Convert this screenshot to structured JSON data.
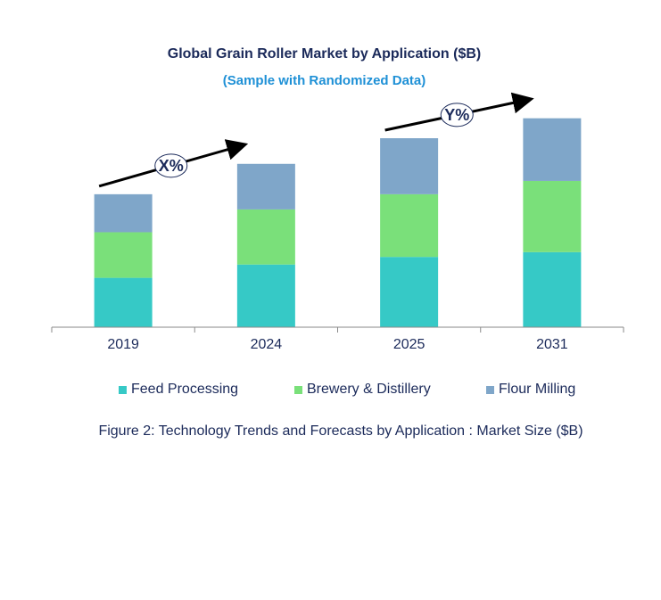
{
  "chart_data": {
    "type": "bar",
    "stacked": true,
    "title": "Global Grain Roller Market by Application ($B)",
    "subtitle": "(Sample with Randomized Data)",
    "categories": [
      "2019",
      "2024",
      "2025",
      "2031"
    ],
    "series": [
      {
        "name": "Feed Processing",
        "color": "#36c9c6",
        "values": [
          52,
          66,
          74,
          79
        ]
      },
      {
        "name": "Brewery & Distillery",
        "color": "#7ae07a",
        "values": [
          48,
          58,
          66,
          75
        ]
      },
      {
        "name": "Flour Milling",
        "color": "#7fa6c9",
        "values": [
          40,
          48,
          59,
          66
        ]
      }
    ],
    "ylim": [
      0,
      230
    ],
    "grid": false,
    "legend_position": "bottom",
    "annotations": [
      {
        "label": "X%",
        "from": "2019",
        "to": "2024"
      },
      {
        "label": "Y%",
        "from": "2025",
        "to": "2031"
      }
    ]
  },
  "caption": "Figure 2: Technology  Trends  and Forecasts by Application : Market Size ($B)"
}
